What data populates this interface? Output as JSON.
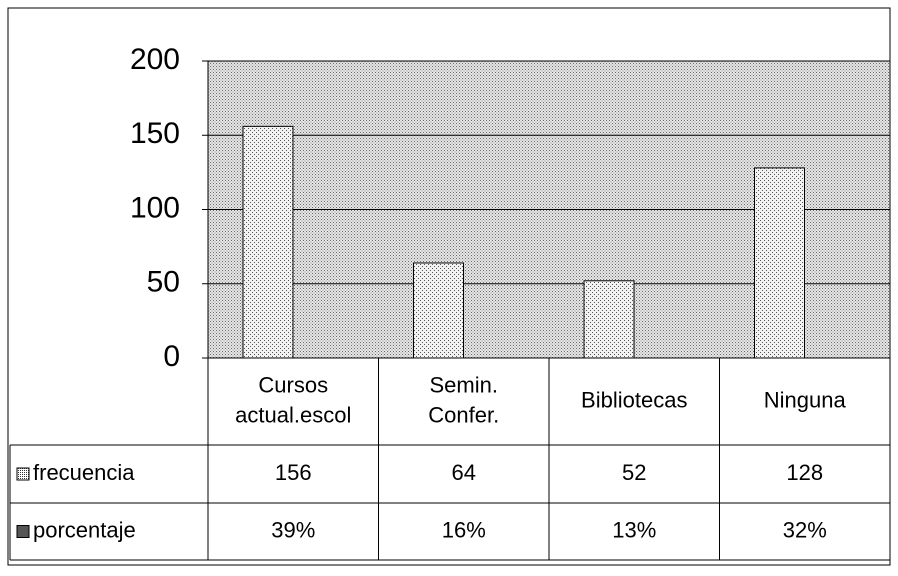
{
  "chart_data": {
    "type": "bar",
    "categories": [
      [
        "Cursos",
        "actual.escol"
      ],
      [
        "Semin.",
        "Confer."
      ],
      [
        "Bibliotecas"
      ],
      [
        "Ninguna"
      ]
    ],
    "series": [
      {
        "name": "frecuencia",
        "color": "#c8c8c8",
        "values": [
          156,
          64,
          52,
          128
        ]
      },
      {
        "name": "porcentaje",
        "color": "#8a8a8a",
        "values": [
          39,
          16,
          13,
          32
        ],
        "value_labels": [
          "39%",
          "16%",
          "13%",
          "32%"
        ]
      }
    ],
    "ylim": [
      0,
      200
    ],
    "yticks": [
      0,
      50,
      100,
      150,
      200
    ],
    "grid": true
  }
}
